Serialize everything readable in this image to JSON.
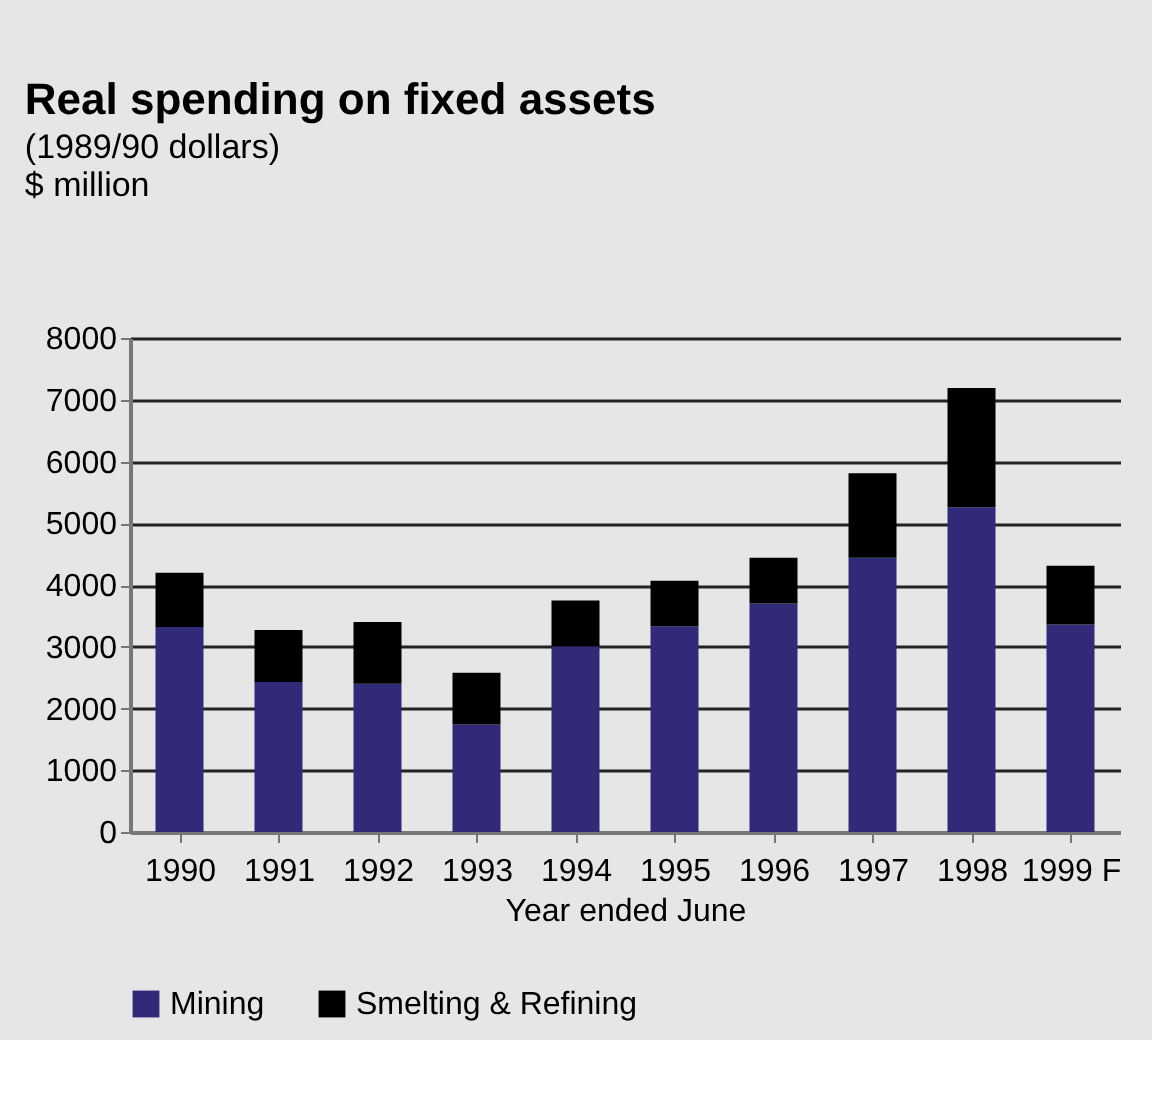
{
  "chart_data": {
    "type": "bar",
    "title": "Real spending on fixed assets",
    "subtitle": "(1989/90 dollars)",
    "ylabel": "$ million",
    "xlabel": "Year ended June",
    "categories": [
      "1990",
      "1991",
      "1992",
      "1993",
      "1994",
      "1995",
      "1996",
      "1997",
      "1998",
      "1999 F"
    ],
    "stacked": true,
    "series": [
      {
        "name": "Mining",
        "color": "#312a78",
        "values": [
          3320,
          2430,
          2400,
          1740,
          3010,
          3330,
          3700,
          4440,
          5260,
          3360
        ]
      },
      {
        "name": "Smelting & Refining",
        "color": "#000000",
        "values": [
          880,
          840,
          1000,
          840,
          740,
          740,
          740,
          1370,
          1930,
          950
        ]
      }
    ],
    "ylim": [
      0,
      8000
    ],
    "yticks": [
      0,
      1000,
      2000,
      3000,
      4000,
      5000,
      6000,
      7000,
      8000
    ],
    "grid": "y",
    "legend": "bottom"
  }
}
